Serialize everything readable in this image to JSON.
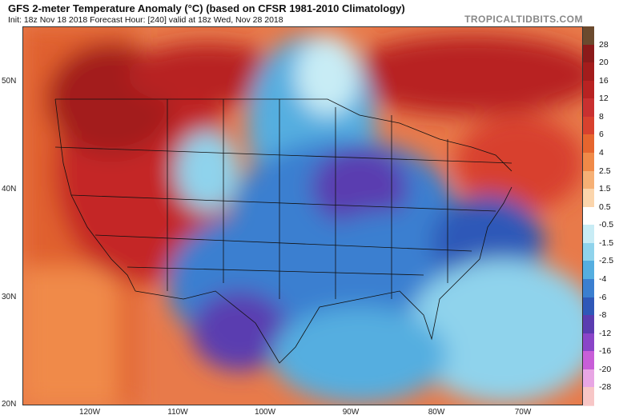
{
  "header": {
    "title": "GFS 2-meter Temperature Anomaly (°C) (based on CFSR 1981-2010 Climatology)",
    "subtitle": "Init: 18z Nov 18 2018   Forecast Hour: [240]   valid at 18z Wed, Nov 28 2018",
    "brand": "TROPICALTIDBITS.COM"
  },
  "axes": {
    "lat": [
      "50N",
      "40N",
      "30N",
      "20N"
    ],
    "lon": [
      "120W",
      "110W",
      "100W",
      "90W",
      "80W",
      "70W"
    ]
  },
  "colorbar": {
    "labels": [
      "28",
      "20",
      "16",
      "12",
      "8",
      "6",
      "4",
      "2.5",
      "1.5",
      "0.5",
      "-0.5",
      "-1.5",
      "-2.5",
      "-4",
      "-6",
      "-8",
      "-12",
      "-16",
      "-20",
      "-28"
    ],
    "colors": [
      "#6b4a2e",
      "#8b1a1a",
      "#a31c1c",
      "#b82222",
      "#c93030",
      "#d8412e",
      "#e6652e",
      "#f08a48",
      "#f6b075",
      "#fbd5ac",
      "#ffffff",
      "#c8ecf5",
      "#8fd3ec",
      "#55aee0",
      "#3b7fd0",
      "#2f58b8",
      "#5a3cb0",
      "#8a45c8",
      "#c85ed8",
      "#e8a6e4",
      "#f7c6c6"
    ]
  },
  "regions": {
    "west": "warm",
    "central_east": "cold",
    "colors": {
      "warm": "#d8412e",
      "hot": "#a31c1c",
      "cold": "#3b7fd0",
      "cool": "#8fd3ec",
      "very_cold": "#8a45c8",
      "neutral": "#fbd5ac"
    }
  }
}
